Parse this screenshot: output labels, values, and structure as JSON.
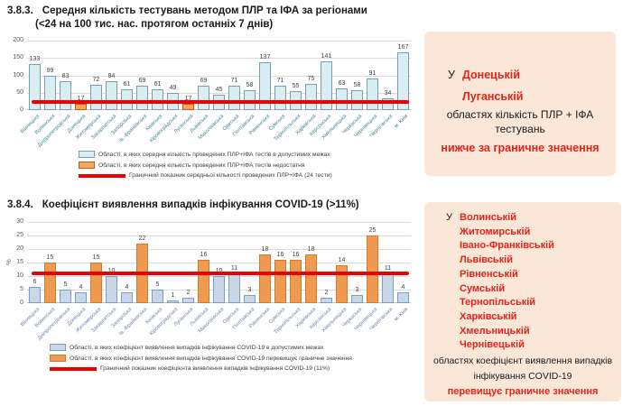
{
  "colors": {
    "red_text": "#E2231A",
    "panel_bg": "#FBE7D8",
    "threshold_red": "#ED0000"
  },
  "section_testing": {
    "number": "3.8.3.",
    "title": "Середня кількість тестувань методом ПЛР та ІФА за регіонами",
    "subtitle": "(<24 на 100 тис. нас. протягом останніх 7 днів)",
    "legend": [
      {
        "swatch": "box",
        "fill": "#D9EEF3",
        "border": "#76A0AC",
        "label": "Області, в яких середня кількість проведених ПЛР+ІФА тестів в допустимих межах"
      },
      {
        "swatch": "box",
        "fill": "#F5A55C",
        "border": "#C55A11",
        "label": "Області, в яких середня кількість проведених ПЛР+ІФА тестів недостатня"
      },
      {
        "swatch": "line",
        "fill": "#ED0000",
        "border": "#ED0000",
        "label": "Граничний показник середньої кількості проведених ПЛР+ІФА (24 тести)"
      }
    ]
  },
  "section_detection": {
    "number": "3.8.4.",
    "title": "Коефіцієнт виявлення випадків інфікування COVID-19 (>11%)",
    "legend": [
      {
        "swatch": "box",
        "fill": "#C9D7E8",
        "border": "#7E9CC0",
        "label": "Області, в яких коефіцієнт виявлення випадків інфікування COVID-19 в допустимих межах"
      },
      {
        "swatch": "box",
        "fill": "#F09A51",
        "border": "#D07C2E",
        "label": "Області, в яких коефіцієнт виявлення випадків інфікування COVID-19 перевищує граничне значення"
      },
      {
        "swatch": "line",
        "fill": "#ED0000",
        "border": "#ED0000",
        "label": "Граничний показник коефіцієнта виявлення випадків інфікування COVID-19 (11%)"
      }
    ]
  },
  "panel_testing": {
    "prefix": "У",
    "regions": [
      "Донецькій",
      "Луганській"
    ],
    "body_lines": [
      "областях кількість ПЛР + ІФА",
      "тестувань"
    ],
    "highlight": "нижче за граничне значення"
  },
  "panel_detection": {
    "prefix": "У",
    "regions": [
      "Волинській",
      "Житомирській",
      "Івано-Франківській",
      "Львівській",
      "Рівненській",
      "Сумській",
      "Тернопільській",
      "Харківській",
      "Хмельницькій",
      "Чернівецькій"
    ],
    "body_lines": [
      "областях коефіцієнт виявлення випадків",
      "інфікування COVID-19"
    ],
    "highlight": "перевищує граничне значення"
  },
  "chart_data": [
    {
      "type": "bar",
      "title": "Середня кількість тестувань методом ПЛР та ІФА за регіонами",
      "categories": [
        "Вінницька",
        "Волинська",
        "Дніпропетровська",
        "Донецька",
        "Житомирська",
        "Закарпатська",
        "Запорізька",
        "Ів.-Франківська",
        "Київська",
        "Кіровоградська",
        "Луганська",
        "Львівська",
        "Миколаївська",
        "Одеська",
        "Полтавська",
        "Рівненська",
        "Сумська",
        "Тернопільська",
        "Харківська",
        "Херсонська",
        "Хмельницька",
        "Черкаська",
        "Чернівецька",
        "Чернігівська",
        "м. Київ"
      ],
      "values": [
        133,
        99,
        83,
        17,
        72,
        84,
        61,
        69,
        61,
        49,
        17,
        69,
        45,
        71,
        58,
        137,
        71,
        55,
        75,
        141,
        63,
        58,
        91,
        34,
        167
      ],
      "ylim": [
        0,
        200
      ],
      "yticks": [
        0,
        50,
        100,
        150,
        200
      ],
      "ylabel": "",
      "grid": true,
      "legend_position": "bottom",
      "threshold": {
        "value": 24,
        "rule": "orange_below",
        "label": "Граничний показник середньої кількості проведених ПЛР+ІФА (24 тести)"
      },
      "colors": {
        "normal_fill": "#D9EEF3",
        "normal_border": "#76A0AC",
        "flag_fill": "#F5A55C",
        "flag_border": "#C55A11",
        "threshold": "#ED0000",
        "category_text": "#47808F"
      }
    },
    {
      "type": "bar",
      "title": "Коефіцієнт виявлення випадків інфікування COVID-19",
      "categories": [
        "Вінницька",
        "Волинська",
        "Дніпропетровська",
        "Донецька",
        "Житомирська",
        "Закарпатська",
        "Запорізька",
        "Ів.-Франківська",
        "Київська",
        "Кіровоградська",
        "Луганська",
        "Львівська",
        "Миколаївська",
        "Одеська",
        "Полтавська",
        "Рівненська",
        "Сумська",
        "Тернопільська",
        "Харківська",
        "Херсонська",
        "Хмельницька",
        "Черкаська",
        "Чернівецька",
        "Чернігівська",
        "м. Київ"
      ],
      "values": [
        6,
        15,
        5,
        4,
        15,
        10,
        4,
        22,
        5,
        1,
        2,
        16,
        10,
        11,
        3,
        18,
        16,
        16,
        18,
        2,
        14,
        3,
        25,
        11,
        4
      ],
      "ylim": [
        0,
        30
      ],
      "yticks": [
        0,
        5,
        10,
        15,
        20,
        25,
        30
      ],
      "ylabel": "%",
      "grid": true,
      "legend_position": "bottom",
      "threshold": {
        "value": 11,
        "rule": "orange_above",
        "label": "Граничний показник коефіцієнта виявлення випадків інфікування COVID-19 (11%)"
      },
      "colors": {
        "normal_fill": "#C9D7E8",
        "normal_border": "#7E9CC0",
        "flag_fill": "#F09A51",
        "flag_border": "#D07C2E",
        "threshold": "#ED0000",
        "category_text": "#6C83A6"
      }
    }
  ]
}
